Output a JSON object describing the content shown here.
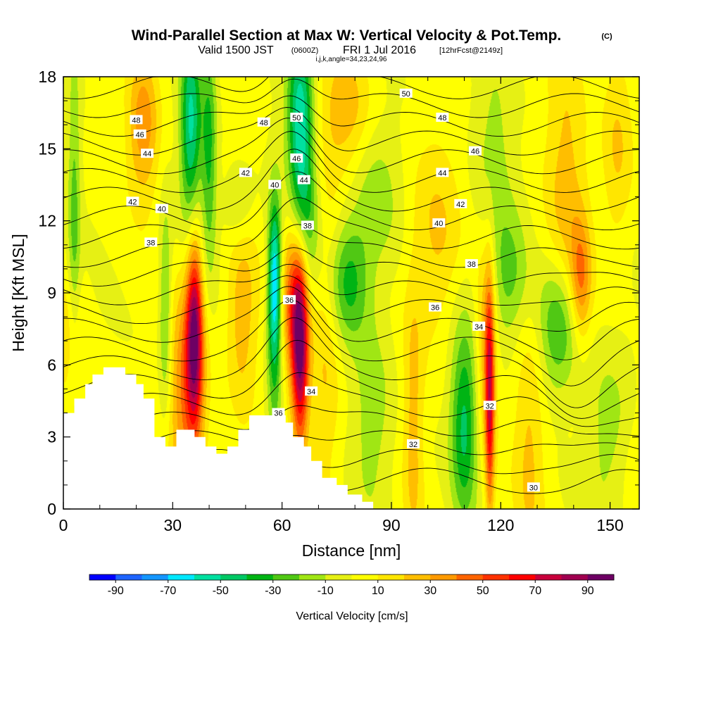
{
  "header": {
    "title_main": "Wind-Parallel Section at Max W: Vertical Velocity & Pot.Temp.",
    "title_mark": "(C)",
    "valid_prefix": "Valid 1500 JST",
    "valid_utc": "(0600Z)",
    "valid_date": "FRI 1 Jul 2016",
    "valid_forecast": "[12hrFcst@2149z]",
    "indices": "i,j,k,angle=34,23,24,96"
  },
  "chart_data": {
    "type": "heatmap",
    "xlabel": "Distance [nm]",
    "ylabel": "Height [Kft MSL]",
    "xlim": [
      0,
      158
    ],
    "ylim": [
      0,
      18
    ],
    "x_ticks": [
      0,
      30,
      60,
      90,
      120,
      150
    ],
    "y_ticks": [
      0,
      3,
      6,
      9,
      12,
      15,
      18
    ],
    "x_tick_labels": [
      "0",
      "30",
      "60",
      "90",
      "120",
      "150"
    ],
    "y_tick_labels": [
      "0",
      "3",
      "6",
      "9",
      "12",
      "15",
      "18"
    ],
    "colorbar": {
      "label": "Vertical Velocity [cm/s]",
      "min": -100,
      "max": 100,
      "step": 10,
      "tick_values": [
        -90,
        -70,
        -50,
        -30,
        -10,
        10,
        30,
        50,
        70,
        90
      ],
      "tick_labels": [
        "-90",
        "-70",
        "-50",
        "-30",
        "-10",
        "10",
        "30",
        "50",
        "70",
        "90"
      ],
      "colors": [
        "#0000ff",
        "#1e64ff",
        "#1496ff",
        "#00e8ff",
        "#00e0a0",
        "#00c864",
        "#00b414",
        "#50c814",
        "#a0e614",
        "#e6f014",
        "#ffff00",
        "#ffe600",
        "#ffbe00",
        "#ff9a00",
        "#ff6400",
        "#ff3200",
        "#ff0000",
        "#c8003c",
        "#a00050",
        "#6e0064"
      ]
    },
    "velocity_features": [
      {
        "x": 3,
        "y": 12,
        "value": -25,
        "sx": 1.2,
        "sy": 5
      },
      {
        "x": 2,
        "y": 7,
        "value": 15,
        "sx": 3,
        "sy": 2
      },
      {
        "x": 22,
        "y": 16,
        "value": 35,
        "sx": 3,
        "sy": 2.2
      },
      {
        "x": 36,
        "y": 7.5,
        "value": 75,
        "sx": 1.6,
        "sy": 2.8
      },
      {
        "x": 34,
        "y": 5,
        "value": 40,
        "sx": 3.5,
        "sy": 3
      },
      {
        "x": 35,
        "y": 16,
        "value": -55,
        "sx": 2,
        "sy": 3
      },
      {
        "x": 40,
        "y": 15,
        "value": -35,
        "sx": 1.5,
        "sy": 3.5
      },
      {
        "x": 28,
        "y": 8,
        "value": -30,
        "sx": 1.2,
        "sy": 3
      },
      {
        "x": 49,
        "y": 8,
        "value": 25,
        "sx": 3,
        "sy": 3
      },
      {
        "x": 48,
        "y": 12.5,
        "value": -18,
        "sx": 3,
        "sy": 1.2
      },
      {
        "x": 58,
        "y": 9.5,
        "value": -55,
        "sx": 1.2,
        "sy": 2.2
      },
      {
        "x": 58,
        "y": 7,
        "value": -30,
        "sx": 1.6,
        "sy": 4
      },
      {
        "x": 65,
        "y": 6.5,
        "value": 80,
        "sx": 1.6,
        "sy": 2.8
      },
      {
        "x": 63,
        "y": 9,
        "value": 45,
        "sx": 2.5,
        "sy": 2.5
      },
      {
        "x": 65,
        "y": 16,
        "value": -60,
        "sx": 2.5,
        "sy": 3
      },
      {
        "x": 67,
        "y": 12,
        "value": -25,
        "sx": 3,
        "sy": 2
      },
      {
        "x": 72,
        "y": 7,
        "value": 20,
        "sx": 3,
        "sy": 5
      },
      {
        "x": 78,
        "y": 9.5,
        "value": -35,
        "sx": 4,
        "sy": 1.8
      },
      {
        "x": 78,
        "y": 16.5,
        "value": 25,
        "sx": 5,
        "sy": 2
      },
      {
        "x": 85,
        "y": 13,
        "value": -18,
        "sx": 5,
        "sy": 2.5
      },
      {
        "x": 85,
        "y": 4,
        "value": -18,
        "sx": 4,
        "sy": 3
      },
      {
        "x": 96,
        "y": 3.5,
        "value": 22,
        "sx": 2,
        "sy": 4
      },
      {
        "x": 102,
        "y": 11,
        "value": 20,
        "sx": 5,
        "sy": 3
      },
      {
        "x": 110,
        "y": 3,
        "value": -35,
        "sx": 2.5,
        "sy": 2.5
      },
      {
        "x": 110,
        "y": 6,
        "value": -15,
        "sx": 3,
        "sy": 3
      },
      {
        "x": 117,
        "y": 4.5,
        "value": 60,
        "sx": 0.9,
        "sy": 3.5
      },
      {
        "x": 116,
        "y": 7,
        "value": 30,
        "sx": 2,
        "sy": 3
      },
      {
        "x": 118,
        "y": 15,
        "value": -15,
        "sx": 4,
        "sy": 3
      },
      {
        "x": 122,
        "y": 9.5,
        "value": -25,
        "sx": 4,
        "sy": 2
      },
      {
        "x": 128,
        "y": 3,
        "value": 20,
        "sx": 3,
        "sy": 4
      },
      {
        "x": 136,
        "y": 7.5,
        "value": -38,
        "sx": 4,
        "sy": 2
      },
      {
        "x": 138,
        "y": 13,
        "value": 22,
        "sx": 4,
        "sy": 5
      },
      {
        "x": 142,
        "y": 9.5,
        "value": 35,
        "sx": 2,
        "sy": 1.8
      },
      {
        "x": 152,
        "y": 15,
        "value": 20,
        "sx": 3,
        "sy": 3
      },
      {
        "x": 150,
        "y": 3,
        "value": -18,
        "sx": 5,
        "sy": 3
      },
      {
        "x": 158,
        "y": 2,
        "value": 10,
        "sx": 4,
        "sy": 2
      }
    ],
    "theta_levels": [
      30,
      31,
      32,
      33,
      34,
      35,
      36,
      37,
      38,
      39,
      40,
      41,
      42,
      43,
      44,
      45,
      46,
      47,
      48,
      49,
      50,
      51
    ],
    "theta_labels": [
      {
        "text": "48",
        "x": 20,
        "y": 16.2
      },
      {
        "text": "46",
        "x": 21,
        "y": 15.6
      },
      {
        "text": "44",
        "x": 23,
        "y": 14.8
      },
      {
        "text": "42",
        "x": 19,
        "y": 12.8
      },
      {
        "text": "40",
        "x": 27,
        "y": 12.5
      },
      {
        "text": "38",
        "x": 24,
        "y": 11.1
      },
      {
        "text": "48",
        "x": 55,
        "y": 16.1
      },
      {
        "text": "42",
        "x": 50,
        "y": 14
      },
      {
        "text": "40",
        "x": 58,
        "y": 13.5
      },
      {
        "text": "50",
        "x": 64,
        "y": 16.3
      },
      {
        "text": "46",
        "x": 64,
        "y": 14.6
      },
      {
        "text": "44",
        "x": 66,
        "y": 13.7
      },
      {
        "text": "38",
        "x": 67,
        "y": 11.8
      },
      {
        "text": "36",
        "x": 62,
        "y": 8.7
      },
      {
        "text": "34",
        "x": 68,
        "y": 4.9
      },
      {
        "text": "36",
        "x": 59,
        "y": 4.0
      },
      {
        "text": "50",
        "x": 94,
        "y": 17.3
      },
      {
        "text": "48",
        "x": 104,
        "y": 16.3
      },
      {
        "text": "46",
        "x": 113,
        "y": 14.9
      },
      {
        "text": "44",
        "x": 104,
        "y": 14.0
      },
      {
        "text": "42",
        "x": 109,
        "y": 12.7
      },
      {
        "text": "40",
        "x": 103,
        "y": 11.9
      },
      {
        "text": "38",
        "x": 112,
        "y": 10.2
      },
      {
        "text": "36",
        "x": 102,
        "y": 8.4
      },
      {
        "text": "34",
        "x": 114,
        "y": 7.6
      },
      {
        "text": "32",
        "x": 96,
        "y": 2.7
      },
      {
        "text": "32",
        "x": 117,
        "y": 4.3
      },
      {
        "text": "30",
        "x": 129,
        "y": 0.9
      }
    ],
    "terrain": [
      [
        0,
        4.0
      ],
      [
        3,
        4.0
      ],
      [
        3,
        4.6
      ],
      [
        6,
        4.6
      ],
      [
        6,
        5.2
      ],
      [
        8,
        5.2
      ],
      [
        8,
        5.6
      ],
      [
        11,
        5.6
      ],
      [
        11,
        5.9
      ],
      [
        17,
        5.9
      ],
      [
        17,
        5.6
      ],
      [
        20,
        5.6
      ],
      [
        20,
        5.2
      ],
      [
        22,
        5.2
      ],
      [
        22,
        4.6
      ],
      [
        25,
        4.6
      ],
      [
        25,
        3.0
      ],
      [
        28,
        3.0
      ],
      [
        28,
        2.6
      ],
      [
        31,
        2.6
      ],
      [
        31,
        3.3
      ],
      [
        36,
        3.3
      ],
      [
        36,
        3.0
      ],
      [
        39,
        3.0
      ],
      [
        39,
        2.6
      ],
      [
        42,
        2.6
      ],
      [
        42,
        2.3
      ],
      [
        45,
        2.3
      ],
      [
        45,
        2.6
      ],
      [
        48,
        2.6
      ],
      [
        48,
        3.3
      ],
      [
        51,
        3.3
      ],
      [
        51,
        3.9
      ],
      [
        61,
        3.9
      ],
      [
        61,
        3.6
      ],
      [
        63,
        3.6
      ],
      [
        63,
        3.0
      ],
      [
        66,
        3.0
      ],
      [
        66,
        2.6
      ],
      [
        68,
        2.6
      ],
      [
        68,
        2.0
      ],
      [
        71,
        2.0
      ],
      [
        71,
        1.3
      ],
      [
        75,
        1.3
      ],
      [
        75,
        1.0
      ],
      [
        78,
        1.0
      ],
      [
        78,
        0.6
      ],
      [
        82,
        0.6
      ],
      [
        82,
        0.3
      ],
      [
        85,
        0.3
      ],
      [
        85,
        0.0
      ]
    ]
  }
}
